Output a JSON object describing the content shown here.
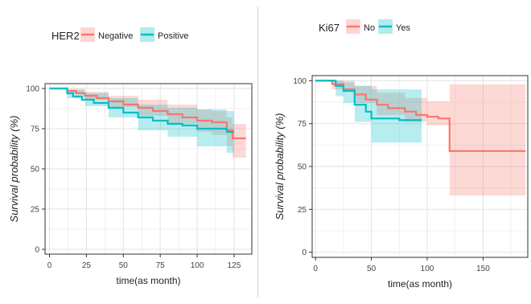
{
  "chart_data": [
    {
      "type": "line",
      "subtype": "kaplan-meier",
      "legend_title": "HER2",
      "legend_position": "top-left",
      "xlabel": "time(as month)",
      "ylabel": "Survival probability (%)",
      "xlim": [
        -3,
        137
      ],
      "ylim": [
        -3,
        103
      ],
      "x_ticks": [
        0,
        25,
        50,
        75,
        100,
        125
      ],
      "y_ticks": [
        0,
        25,
        50,
        75,
        100
      ],
      "tick_labels_x": [
        "0",
        "25",
        "50",
        "75",
        "100",
        "125"
      ],
      "tick_labels_y": [
        "0",
        "25",
        "50",
        "75",
        "100"
      ],
      "grid": true,
      "series": [
        {
          "name": "Negative",
          "color": "#f8766d",
          "steps": [
            [
              0,
              100
            ],
            [
              6,
              100
            ],
            [
              12,
              98.5
            ],
            [
              18,
              97
            ],
            [
              24,
              95.5
            ],
            [
              32,
              94
            ],
            [
              40,
              92
            ],
            [
              50,
              90
            ],
            [
              60,
              88
            ],
            [
              70,
              86
            ],
            [
              80,
              84
            ],
            [
              90,
              82
            ],
            [
              100,
              80
            ],
            [
              110,
              79
            ],
            [
              120,
              74
            ],
            [
              124,
              69
            ],
            [
              133,
              69
            ]
          ],
          "ci": [
            [
              0,
              100,
              100
            ],
            [
              12,
              99.8,
              97
            ],
            [
              24,
              98,
              93
            ],
            [
              40,
              95.5,
              88.5
            ],
            [
              60,
              93,
              83
            ],
            [
              80,
              90,
              78
            ],
            [
              100,
              87,
              73
            ],
            [
              110,
              86,
              71
            ],
            [
              120,
              82,
              64
            ],
            [
              124,
              78,
              57
            ],
            [
              133,
              78,
              57
            ]
          ]
        },
        {
          "name": "Positive",
          "color": "#00bfc4",
          "steps": [
            [
              0,
              100
            ],
            [
              8,
              100
            ],
            [
              12,
              97
            ],
            [
              16,
              95
            ],
            [
              22,
              93
            ],
            [
              30,
              91
            ],
            [
              40,
              88
            ],
            [
              50,
              85
            ],
            [
              60,
              82
            ],
            [
              70,
              80
            ],
            [
              80,
              78
            ],
            [
              90,
              77
            ],
            [
              100,
              75
            ],
            [
              110,
              75
            ],
            [
              120,
              73
            ],
            [
              125,
              73
            ]
          ],
          "ci": [
            [
              0,
              100,
              100
            ],
            [
              12,
              99,
              94
            ],
            [
              24,
              97,
              89
            ],
            [
              40,
              94,
              82
            ],
            [
              60,
              90,
              74
            ],
            [
              80,
              88,
              70
            ],
            [
              100,
              87,
              64
            ],
            [
              110,
              87,
              64
            ],
            [
              120,
              86,
              60
            ],
            [
              125,
              86,
              60
            ]
          ]
        }
      ]
    },
    {
      "type": "line",
      "subtype": "kaplan-meier",
      "legend_title": "Ki67",
      "legend_position": "top-left",
      "xlabel": "time(as month)",
      "ylabel": "Survival probability (%)",
      "xlim": [
        -3,
        190
      ],
      "ylim": [
        -3,
        103
      ],
      "x_ticks": [
        0,
        50,
        100,
        150
      ],
      "y_ticks": [
        0,
        25,
        50,
        75,
        100
      ],
      "tick_labels_x": [
        "0",
        "50",
        "100",
        "150"
      ],
      "tick_labels_y": [
        "0",
        "25",
        "50",
        "75",
        "100"
      ],
      "grid": true,
      "series": [
        {
          "name": "No",
          "color": "#f8766d",
          "steps": [
            [
              0,
              100
            ],
            [
              8,
              100
            ],
            [
              15,
              98
            ],
            [
              25,
              95
            ],
            [
              35,
              92
            ],
            [
              45,
              89
            ],
            [
              55,
              86
            ],
            [
              65,
              84
            ],
            [
              80,
              82
            ],
            [
              90,
              80
            ],
            [
              100,
              79
            ],
            [
              110,
              78
            ],
            [
              120,
              59
            ],
            [
              188,
              59
            ]
          ],
          "ci": [
            [
              0,
              100,
              100
            ],
            [
              15,
              100,
              95
            ],
            [
              35,
              97,
              87
            ],
            [
              55,
              93,
              80
            ],
            [
              80,
              90,
              76
            ],
            [
              100,
              88,
              74
            ],
            [
              120,
              98,
              33
            ],
            [
              188,
              98,
              33
            ]
          ]
        },
        {
          "name": "Yes",
          "color": "#00bfc4",
          "steps": [
            [
              0,
              100
            ],
            [
              10,
              100
            ],
            [
              18,
              97
            ],
            [
              25,
              94
            ],
            [
              35,
              86
            ],
            [
              45,
              82
            ],
            [
              50,
              78
            ],
            [
              65,
              78
            ],
            [
              75,
              77
            ],
            [
              95,
              77
            ]
          ],
          "ci": [
            [
              0,
              100,
              100
            ],
            [
              18,
              100,
              91
            ],
            [
              25,
              99,
              87
            ],
            [
              35,
              97,
              76
            ],
            [
              50,
              95,
              64
            ],
            [
              75,
              95,
              64
            ],
            [
              95,
              95,
              64
            ]
          ]
        }
      ]
    }
  ]
}
